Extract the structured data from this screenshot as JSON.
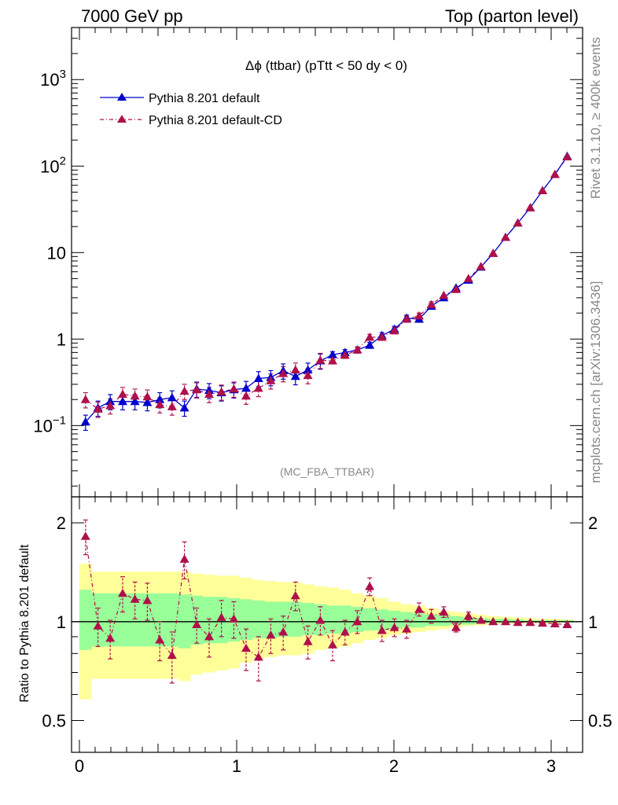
{
  "header": {
    "left": "7000 GeV pp",
    "right": "Top (parton level)"
  },
  "side_text": {
    "rivet": "Rivet 3.1.10, ≥ 400k events",
    "mcplots": "mcplots.cern.ch [arXiv:1306.3436]"
  },
  "colors": {
    "series1": "#0000cc",
    "series2": "#b0104a",
    "band_outer": "#ffff99",
    "band_inner": "#99ff99"
  },
  "chart_data": [
    {
      "type": "line",
      "title": "Δϕ (ttbar) (pTtt < 50 dy < 0)",
      "watermark": "(MC_FBA_TTBAR)",
      "y_scale": "log",
      "xlim": [
        -0.05,
        3.2
      ],
      "ylim": [
        0.015,
        4000
      ],
      "y_ticks": [
        {
          "v": 0.1,
          "base": "10",
          "exp": "−1"
        },
        {
          "v": 1,
          "label": "1"
        },
        {
          "v": 10,
          "label": "10"
        },
        {
          "v": 100,
          "base": "10",
          "exp": "2"
        },
        {
          "v": 1000,
          "base": "10",
          "exp": "3"
        }
      ],
      "legend": "top-left",
      "x": [
        0.039,
        0.118,
        0.196,
        0.275,
        0.353,
        0.432,
        0.511,
        0.589,
        0.668,
        0.746,
        0.825,
        0.903,
        0.982,
        1.06,
        1.139,
        1.217,
        1.296,
        1.374,
        1.453,
        1.532,
        1.61,
        1.689,
        1.767,
        1.846,
        1.924,
        2.003,
        2.081,
        2.16,
        2.238,
        2.317,
        2.395,
        2.474,
        2.553,
        2.631,
        2.71,
        2.788,
        2.867,
        2.945,
        3.024,
        3.102
      ],
      "series": [
        {
          "name": "Pythia 8.201 default",
          "values": [
            0.11,
            0.16,
            0.19,
            0.19,
            0.19,
            0.185,
            0.2,
            0.21,
            0.16,
            0.265,
            0.255,
            0.24,
            0.26,
            0.27,
            0.35,
            0.36,
            0.43,
            0.37,
            0.44,
            0.56,
            0.66,
            0.7,
            0.75,
            0.85,
            1.1,
            1.3,
            1.75,
            1.7,
            2.4,
            3.0,
            3.9,
            4.8,
            6.8,
            9.8,
            15.0,
            22.0,
            33.0,
            52.0,
            80.0,
            130.0
          ]
        },
        {
          "name": "Pythia 8.201 default-CD",
          "values": [
            0.2,
            0.155,
            0.17,
            0.23,
            0.22,
            0.215,
            0.175,
            0.165,
            0.25,
            0.26,
            0.23,
            0.245,
            0.265,
            0.22,
            0.27,
            0.33,
            0.4,
            0.44,
            0.38,
            0.57,
            0.56,
            0.65,
            0.75,
            1.05,
            1.05,
            1.25,
            1.7,
            1.85,
            2.5,
            3.2,
            3.75,
            5.0,
            6.9,
            9.8,
            15.0,
            22.0,
            33.0,
            52.0,
            80.0,
            128.0
          ]
        }
      ]
    },
    {
      "type": "line",
      "ylabel": "Ratio to Pythia 8.201 default",
      "y_scale": "log",
      "xlim": [
        -0.05,
        3.2
      ],
      "ylim": [
        0.4,
        2.4
      ],
      "y_ticks": [
        0.5,
        1,
        2
      ],
      "x_ticks": [
        0,
        1,
        2,
        3
      ],
      "band_outer": [
        [
          0.58,
          1.5
        ],
        [
          0.67,
          1.42
        ],
        [
          0.67,
          1.42
        ],
        [
          0.67,
          1.42
        ],
        [
          0.67,
          1.42
        ],
        [
          0.67,
          1.42
        ],
        [
          0.67,
          1.42
        ],
        [
          0.67,
          1.42
        ],
        [
          0.66,
          1.42
        ],
        [
          0.69,
          1.4
        ],
        [
          0.7,
          1.39
        ],
        [
          0.71,
          1.38
        ],
        [
          0.72,
          1.38
        ],
        [
          0.75,
          1.36
        ],
        [
          0.77,
          1.34
        ],
        [
          0.78,
          1.33
        ],
        [
          0.79,
          1.32
        ],
        [
          0.79,
          1.32
        ],
        [
          0.8,
          1.3
        ],
        [
          0.82,
          1.28
        ],
        [
          0.83,
          1.27
        ],
        [
          0.84,
          1.25
        ],
        [
          0.86,
          1.22
        ],
        [
          0.88,
          1.2
        ],
        [
          0.89,
          1.18
        ],
        [
          0.91,
          1.15
        ],
        [
          0.92,
          1.13
        ],
        [
          0.93,
          1.12
        ],
        [
          0.94,
          1.1
        ],
        [
          0.95,
          1.08
        ],
        [
          0.96,
          1.07
        ],
        [
          0.97,
          1.06
        ],
        [
          0.975,
          1.05
        ],
        [
          0.98,
          1.04
        ],
        [
          0.985,
          1.035
        ],
        [
          0.985,
          1.03
        ],
        [
          0.99,
          1.025
        ],
        [
          0.99,
          1.02
        ],
        [
          0.99,
          1.02
        ],
        [
          0.995,
          1.015
        ]
      ],
      "band_inner": [
        [
          0.82,
          1.25
        ],
        [
          0.84,
          1.22
        ],
        [
          0.84,
          1.22
        ],
        [
          0.84,
          1.22
        ],
        [
          0.84,
          1.22
        ],
        [
          0.84,
          1.22
        ],
        [
          0.84,
          1.22
        ],
        [
          0.84,
          1.22
        ],
        [
          0.83,
          1.21
        ],
        [
          0.85,
          1.2
        ],
        [
          0.86,
          1.19
        ],
        [
          0.86,
          1.19
        ],
        [
          0.87,
          1.18
        ],
        [
          0.88,
          1.17
        ],
        [
          0.89,
          1.16
        ],
        [
          0.89,
          1.15
        ],
        [
          0.9,
          1.15
        ],
        [
          0.9,
          1.15
        ],
        [
          0.91,
          1.14
        ],
        [
          0.91,
          1.13
        ],
        [
          0.92,
          1.12
        ],
        [
          0.92,
          1.12
        ],
        [
          0.93,
          1.11
        ],
        [
          0.94,
          1.1
        ],
        [
          0.94,
          1.09
        ],
        [
          0.95,
          1.08
        ],
        [
          0.96,
          1.07
        ],
        [
          0.96,
          1.06
        ],
        [
          0.97,
          1.05
        ],
        [
          0.97,
          1.05
        ],
        [
          0.98,
          1.04
        ],
        [
          0.98,
          1.03
        ],
        [
          0.985,
          1.025
        ],
        [
          0.99,
          1.02
        ],
        [
          0.99,
          1.02
        ],
        [
          0.99,
          1.015
        ],
        [
          0.995,
          1.01
        ],
        [
          0.995,
          1.01
        ],
        [
          0.995,
          1.01
        ],
        [
          0.995,
          1.01
        ]
      ],
      "series": [
        {
          "name": "Pythia 8.201 default-CD",
          "values": [
            1.82,
            0.97,
            0.89,
            1.22,
            1.17,
            1.16,
            0.88,
            0.79,
            1.55,
            0.98,
            0.9,
            1.03,
            1.02,
            0.83,
            0.78,
            0.91,
            0.93,
            1.2,
            0.87,
            1.01,
            0.85,
            0.93,
            1.0,
            1.28,
            0.94,
            0.96,
            0.95,
            1.09,
            1.04,
            1.07,
            0.96,
            1.04,
            1.01,
            1.0,
            1.0,
            0.995,
            0.995,
            0.99,
            0.985,
            0.98
          ],
          "err": [
            0.22,
            0.13,
            0.12,
            0.15,
            0.15,
            0.15,
            0.12,
            0.14,
            0.2,
            0.12,
            0.12,
            0.13,
            0.13,
            0.12,
            0.12,
            0.11,
            0.11,
            0.12,
            0.1,
            0.1,
            0.09,
            0.08,
            0.08,
            0.08,
            0.07,
            0.06,
            0.06,
            0.05,
            0.05,
            0.04,
            0.03,
            0.03,
            0.02,
            0.02,
            0.015,
            0.012,
            0.01,
            0.01,
            0.01,
            0.008
          ]
        }
      ]
    }
  ]
}
